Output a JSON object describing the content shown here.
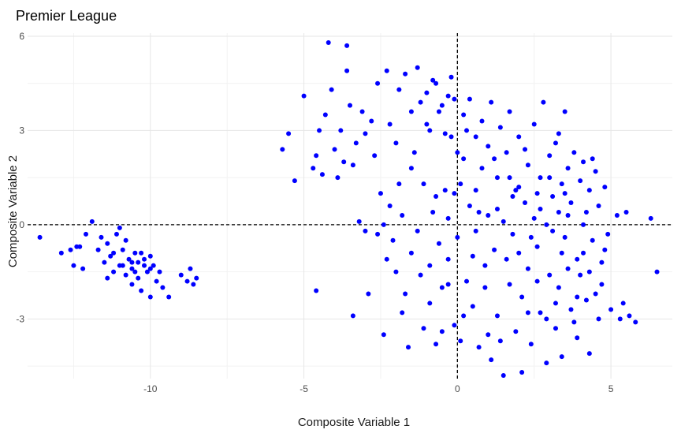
{
  "chart_data": {
    "type": "scatter",
    "title": "Premier League",
    "xlabel": "Composite Variable 1",
    "ylabel": "Composite Variable 2",
    "xlim": [
      -14,
      7
    ],
    "ylim": [
      -4.9,
      6.1
    ],
    "xticks": [
      -10,
      -5,
      0,
      5
    ],
    "yticks": [
      -3,
      0,
      3,
      6
    ],
    "grid": true,
    "reference_lines": {
      "x": 0,
      "y": 0,
      "style": "dashed"
    },
    "point_color": "#0000ff",
    "series": [
      {
        "points": [
          [
            -13.6,
            -0.4
          ],
          [
            -12.9,
            -0.9
          ],
          [
            -12.6,
            -0.8
          ],
          [
            -12.5,
            -1.3
          ],
          [
            -12.3,
            -0.7
          ],
          [
            -12.2,
            -1.4
          ],
          [
            -12.1,
            -0.3
          ],
          [
            -11.9,
            0.1
          ],
          [
            -11.7,
            -0.8
          ],
          [
            -11.6,
            -0.4
          ],
          [
            -11.5,
            -1.2
          ],
          [
            -11.4,
            -0.6
          ],
          [
            -11.3,
            -1.0
          ],
          [
            -11.2,
            -1.5
          ],
          [
            -11.1,
            -0.3
          ],
          [
            -11.0,
            -0.1
          ],
          [
            -11.0,
            -1.3
          ],
          [
            -10.9,
            -0.8
          ],
          [
            -10.8,
            -1.6
          ],
          [
            -10.8,
            -0.5
          ],
          [
            -10.7,
            -1.1
          ],
          [
            -10.6,
            -1.9
          ],
          [
            -10.6,
            -1.4
          ],
          [
            -10.5,
            -0.9
          ],
          [
            -10.4,
            -1.2
          ],
          [
            -10.4,
            -1.7
          ],
          [
            -10.3,
            -0.9
          ],
          [
            -10.3,
            -2.1
          ],
          [
            -10.2,
            -1.3
          ],
          [
            -10.2,
            -1.1
          ],
          [
            -10.1,
            -1.5
          ],
          [
            -10.0,
            -1.0
          ],
          [
            -10.0,
            -2.3
          ],
          [
            -9.9,
            -1.3
          ],
          [
            -9.8,
            -1.8
          ],
          [
            -9.7,
            -1.5
          ],
          [
            -9.6,
            -2.0
          ],
          [
            -9.4,
            -2.3
          ],
          [
            -9.0,
            -1.6
          ],
          [
            -8.8,
            -1.8
          ],
          [
            -8.7,
            -1.4
          ],
          [
            -8.6,
            -1.9
          ],
          [
            -8.5,
            -1.7
          ],
          [
            -10.6,
            -1.2
          ],
          [
            -10.0,
            -1.4
          ],
          [
            -11.4,
            -1.7
          ],
          [
            -10.9,
            -1.3
          ],
          [
            -12.4,
            -0.7
          ],
          [
            -11.2,
            -0.9
          ],
          [
            -10.5,
            -1.5
          ],
          [
            -5.7,
            2.4
          ],
          [
            -5.5,
            2.9
          ],
          [
            -5.3,
            1.4
          ],
          [
            -5.0,
            4.1
          ],
          [
            -4.7,
            1.8
          ],
          [
            -4.6,
            -2.1
          ],
          [
            -4.6,
            2.2
          ],
          [
            -4.5,
            3.0
          ],
          [
            -4.4,
            1.6
          ],
          [
            -4.3,
            3.5
          ],
          [
            -4.2,
            5.8
          ],
          [
            -4.1,
            4.3
          ],
          [
            -4.0,
            2.4
          ],
          [
            -3.9,
            1.5
          ],
          [
            -3.8,
            3.0
          ],
          [
            -3.7,
            2.0
          ],
          [
            -3.6,
            4.9
          ],
          [
            -3.6,
            5.7
          ],
          [
            -3.5,
            3.8
          ],
          [
            -3.4,
            1.9
          ],
          [
            -3.4,
            -2.9
          ],
          [
            -3.3,
            2.6
          ],
          [
            -3.2,
            0.1
          ],
          [
            -3.1,
            3.6
          ],
          [
            -3.0,
            -0.2
          ],
          [
            -3.0,
            2.9
          ],
          [
            -2.9,
            -2.2
          ],
          [
            -2.8,
            3.3
          ],
          [
            -2.7,
            2.2
          ],
          [
            -2.6,
            4.5
          ],
          [
            -2.5,
            1.0
          ],
          [
            -2.4,
            0.0
          ],
          [
            -2.4,
            -3.5
          ],
          [
            -2.3,
            4.9
          ],
          [
            -2.2,
            3.2
          ],
          [
            -2.1,
            -0.5
          ],
          [
            -2.0,
            -1.5
          ],
          [
            -2.0,
            2.6
          ],
          [
            -1.9,
            4.3
          ],
          [
            -1.8,
            0.3
          ],
          [
            -1.8,
            -2.8
          ],
          [
            -1.7,
            4.8
          ],
          [
            -1.6,
            -3.9
          ],
          [
            -1.5,
            3.6
          ],
          [
            -1.5,
            -0.9
          ],
          [
            -1.4,
            2.3
          ],
          [
            -1.3,
            5.0
          ],
          [
            -1.2,
            -1.6
          ],
          [
            -1.1,
            -3.3
          ],
          [
            -1.1,
            1.3
          ],
          [
            -1.0,
            4.2
          ],
          [
            -0.9,
            -2.5
          ],
          [
            -0.9,
            3.0
          ],
          [
            -0.8,
            0.4
          ],
          [
            -0.7,
            -3.8
          ],
          [
            -0.7,
            4.5
          ],
          [
            -0.6,
            -0.6
          ],
          [
            -0.5,
            3.8
          ],
          [
            -0.5,
            -2.0
          ],
          [
            -0.4,
            1.1
          ],
          [
            -0.3,
            4.1
          ],
          [
            -0.3,
            -1.1
          ],
          [
            -0.2,
            2.8
          ],
          [
            -0.1,
            -3.2
          ],
          [
            -0.1,
            4.0
          ],
          [
            0.0,
            -0.4
          ],
          [
            0.1,
            1.3
          ],
          [
            0.1,
            -3.7
          ],
          [
            0.2,
            2.1
          ],
          [
            0.2,
            3.5
          ],
          [
            0.3,
            -1.8
          ],
          [
            0.4,
            0.6
          ],
          [
            0.4,
            4.0
          ],
          [
            0.5,
            -2.6
          ],
          [
            0.6,
            2.8
          ],
          [
            0.6,
            -0.2
          ],
          [
            0.7,
            -3.9
          ],
          [
            0.8,
            1.8
          ],
          [
            0.8,
            3.3
          ],
          [
            0.9,
            -1.3
          ],
          [
            1.0,
            0.3
          ],
          [
            1.0,
            2.5
          ],
          [
            1.1,
            -4.3
          ],
          [
            1.1,
            3.9
          ],
          [
            1.2,
            -0.8
          ],
          [
            1.3,
            1.5
          ],
          [
            1.3,
            -2.9
          ],
          [
            1.4,
            3.1
          ],
          [
            1.5,
            0.1
          ],
          [
            1.5,
            -4.8
          ],
          [
            1.6,
            2.3
          ],
          [
            1.7,
            -1.9
          ],
          [
            1.7,
            3.6
          ],
          [
            1.8,
            -0.3
          ],
          [
            1.9,
            1.1
          ],
          [
            1.9,
            -3.4
          ],
          [
            2.0,
            2.8
          ],
          [
            2.1,
            -2.3
          ],
          [
            2.1,
            -4.7
          ],
          [
            2.2,
            0.7
          ],
          [
            2.3,
            1.9
          ],
          [
            2.3,
            -1.4
          ],
          [
            2.4,
            -3.8
          ],
          [
            2.5,
            0.2
          ],
          [
            2.5,
            3.2
          ],
          [
            2.6,
            -0.7
          ],
          [
            2.7,
            1.5
          ],
          [
            2.7,
            -2.8
          ],
          [
            2.8,
            3.9
          ],
          [
            2.9,
            0.0
          ],
          [
            2.9,
            -4.4
          ],
          [
            3.0,
            2.2
          ],
          [
            3.0,
            -1.6
          ],
          [
            3.1,
            0.9
          ],
          [
            3.2,
            -3.3
          ],
          [
            3.2,
            2.6
          ],
          [
            3.3,
            0.4
          ],
          [
            3.3,
            -2.0
          ],
          [
            3.4,
            1.3
          ],
          [
            3.4,
            -4.2
          ],
          [
            3.5,
            3.6
          ],
          [
            3.5,
            -0.4
          ],
          [
            3.6,
            1.8
          ],
          [
            3.7,
            -2.7
          ],
          [
            3.7,
            0.7
          ],
          [
            3.8,
            2.3
          ],
          [
            3.9,
            -1.1
          ],
          [
            3.9,
            -3.6
          ],
          [
            4.0,
            1.4
          ],
          [
            4.1,
            0.0
          ],
          [
            4.1,
            2.0
          ],
          [
            4.2,
            -2.4
          ],
          [
            4.3,
            1.1
          ],
          [
            4.3,
            -4.1
          ],
          [
            4.4,
            -0.5
          ],
          [
            4.5,
            1.7
          ],
          [
            4.6,
            -3.0
          ],
          [
            4.6,
            0.6
          ],
          [
            4.7,
            -1.9
          ],
          [
            4.8,
            1.2
          ],
          [
            4.9,
            -0.3
          ],
          [
            5.0,
            -2.7
          ],
          [
            5.2,
            0.3
          ],
          [
            5.3,
            -3.0
          ],
          [
            5.4,
            -2.5
          ],
          [
            5.5,
            0.4
          ],
          [
            5.6,
            -2.9
          ],
          [
            5.8,
            -3.1
          ],
          [
            6.3,
            0.2
          ],
          [
            6.5,
            -1.5
          ],
          [
            -0.6,
            3.6
          ],
          [
            -0.4,
            2.9
          ],
          [
            0.3,
            3.0
          ],
          [
            -0.8,
            4.6
          ],
          [
            -1.0,
            3.2
          ],
          [
            -0.2,
            4.7
          ],
          [
            -0.1,
            1.0
          ],
          [
            -0.3,
            -1.9
          ],
          [
            -0.7,
            0.9
          ],
          [
            -1.3,
            -0.2
          ],
          [
            -1.5,
            1.8
          ],
          [
            -2.2,
            0.6
          ],
          [
            -0.9,
            -1.3
          ],
          [
            -1.7,
            -2.2
          ],
          [
            -2.6,
            -0.3
          ],
          [
            -0.5,
            -3.4
          ],
          [
            -1.2,
            3.9
          ],
          [
            -0.3,
            0.2
          ],
          [
            -2.3,
            -1.1
          ],
          [
            -1.9,
            1.3
          ],
          [
            0.5,
            -1.0
          ],
          [
            0.9,
            -2.0
          ],
          [
            1.2,
            2.1
          ],
          [
            1.6,
            -1.1
          ],
          [
            2.0,
            -0.9
          ],
          [
            2.3,
            -2.8
          ],
          [
            2.6,
            1.0
          ],
          [
            2.9,
            -3.0
          ],
          [
            3.1,
            -0.2
          ],
          [
            3.3,
            2.9
          ],
          [
            3.6,
            0.3
          ],
          [
            3.9,
            -2.3
          ],
          [
            4.1,
            -0.9
          ],
          [
            4.4,
            2.1
          ],
          [
            4.7,
            -1.2
          ],
          [
            0.7,
            0.4
          ],
          [
            1.4,
            -3.7
          ],
          [
            1.8,
            0.9
          ],
          [
            2.2,
            2.4
          ],
          [
            2.6,
            -1.8
          ],
          [
            3.0,
            1.5
          ],
          [
            3.4,
            -0.9
          ],
          [
            3.8,
            -3.1
          ],
          [
            4.2,
            0.4
          ],
          [
            4.5,
            -2.2
          ],
          [
            0.2,
            -2.9
          ],
          [
            1.0,
            -3.5
          ],
          [
            1.7,
            1.5
          ],
          [
            2.4,
            -0.4
          ],
          [
            3.2,
            -2.5
          ],
          [
            3.5,
            1.0
          ],
          [
            4.0,
            -1.6
          ],
          [
            4.8,
            -0.8
          ],
          [
            0.0,
            2.3
          ],
          [
            0.6,
            1.1
          ],
          [
            1.3,
            0.5
          ],
          [
            2.0,
            1.2
          ],
          [
            2.7,
            0.5
          ],
          [
            3.6,
            -1.4
          ],
          [
            4.3,
            -1.5
          ]
        ]
      }
    ]
  }
}
